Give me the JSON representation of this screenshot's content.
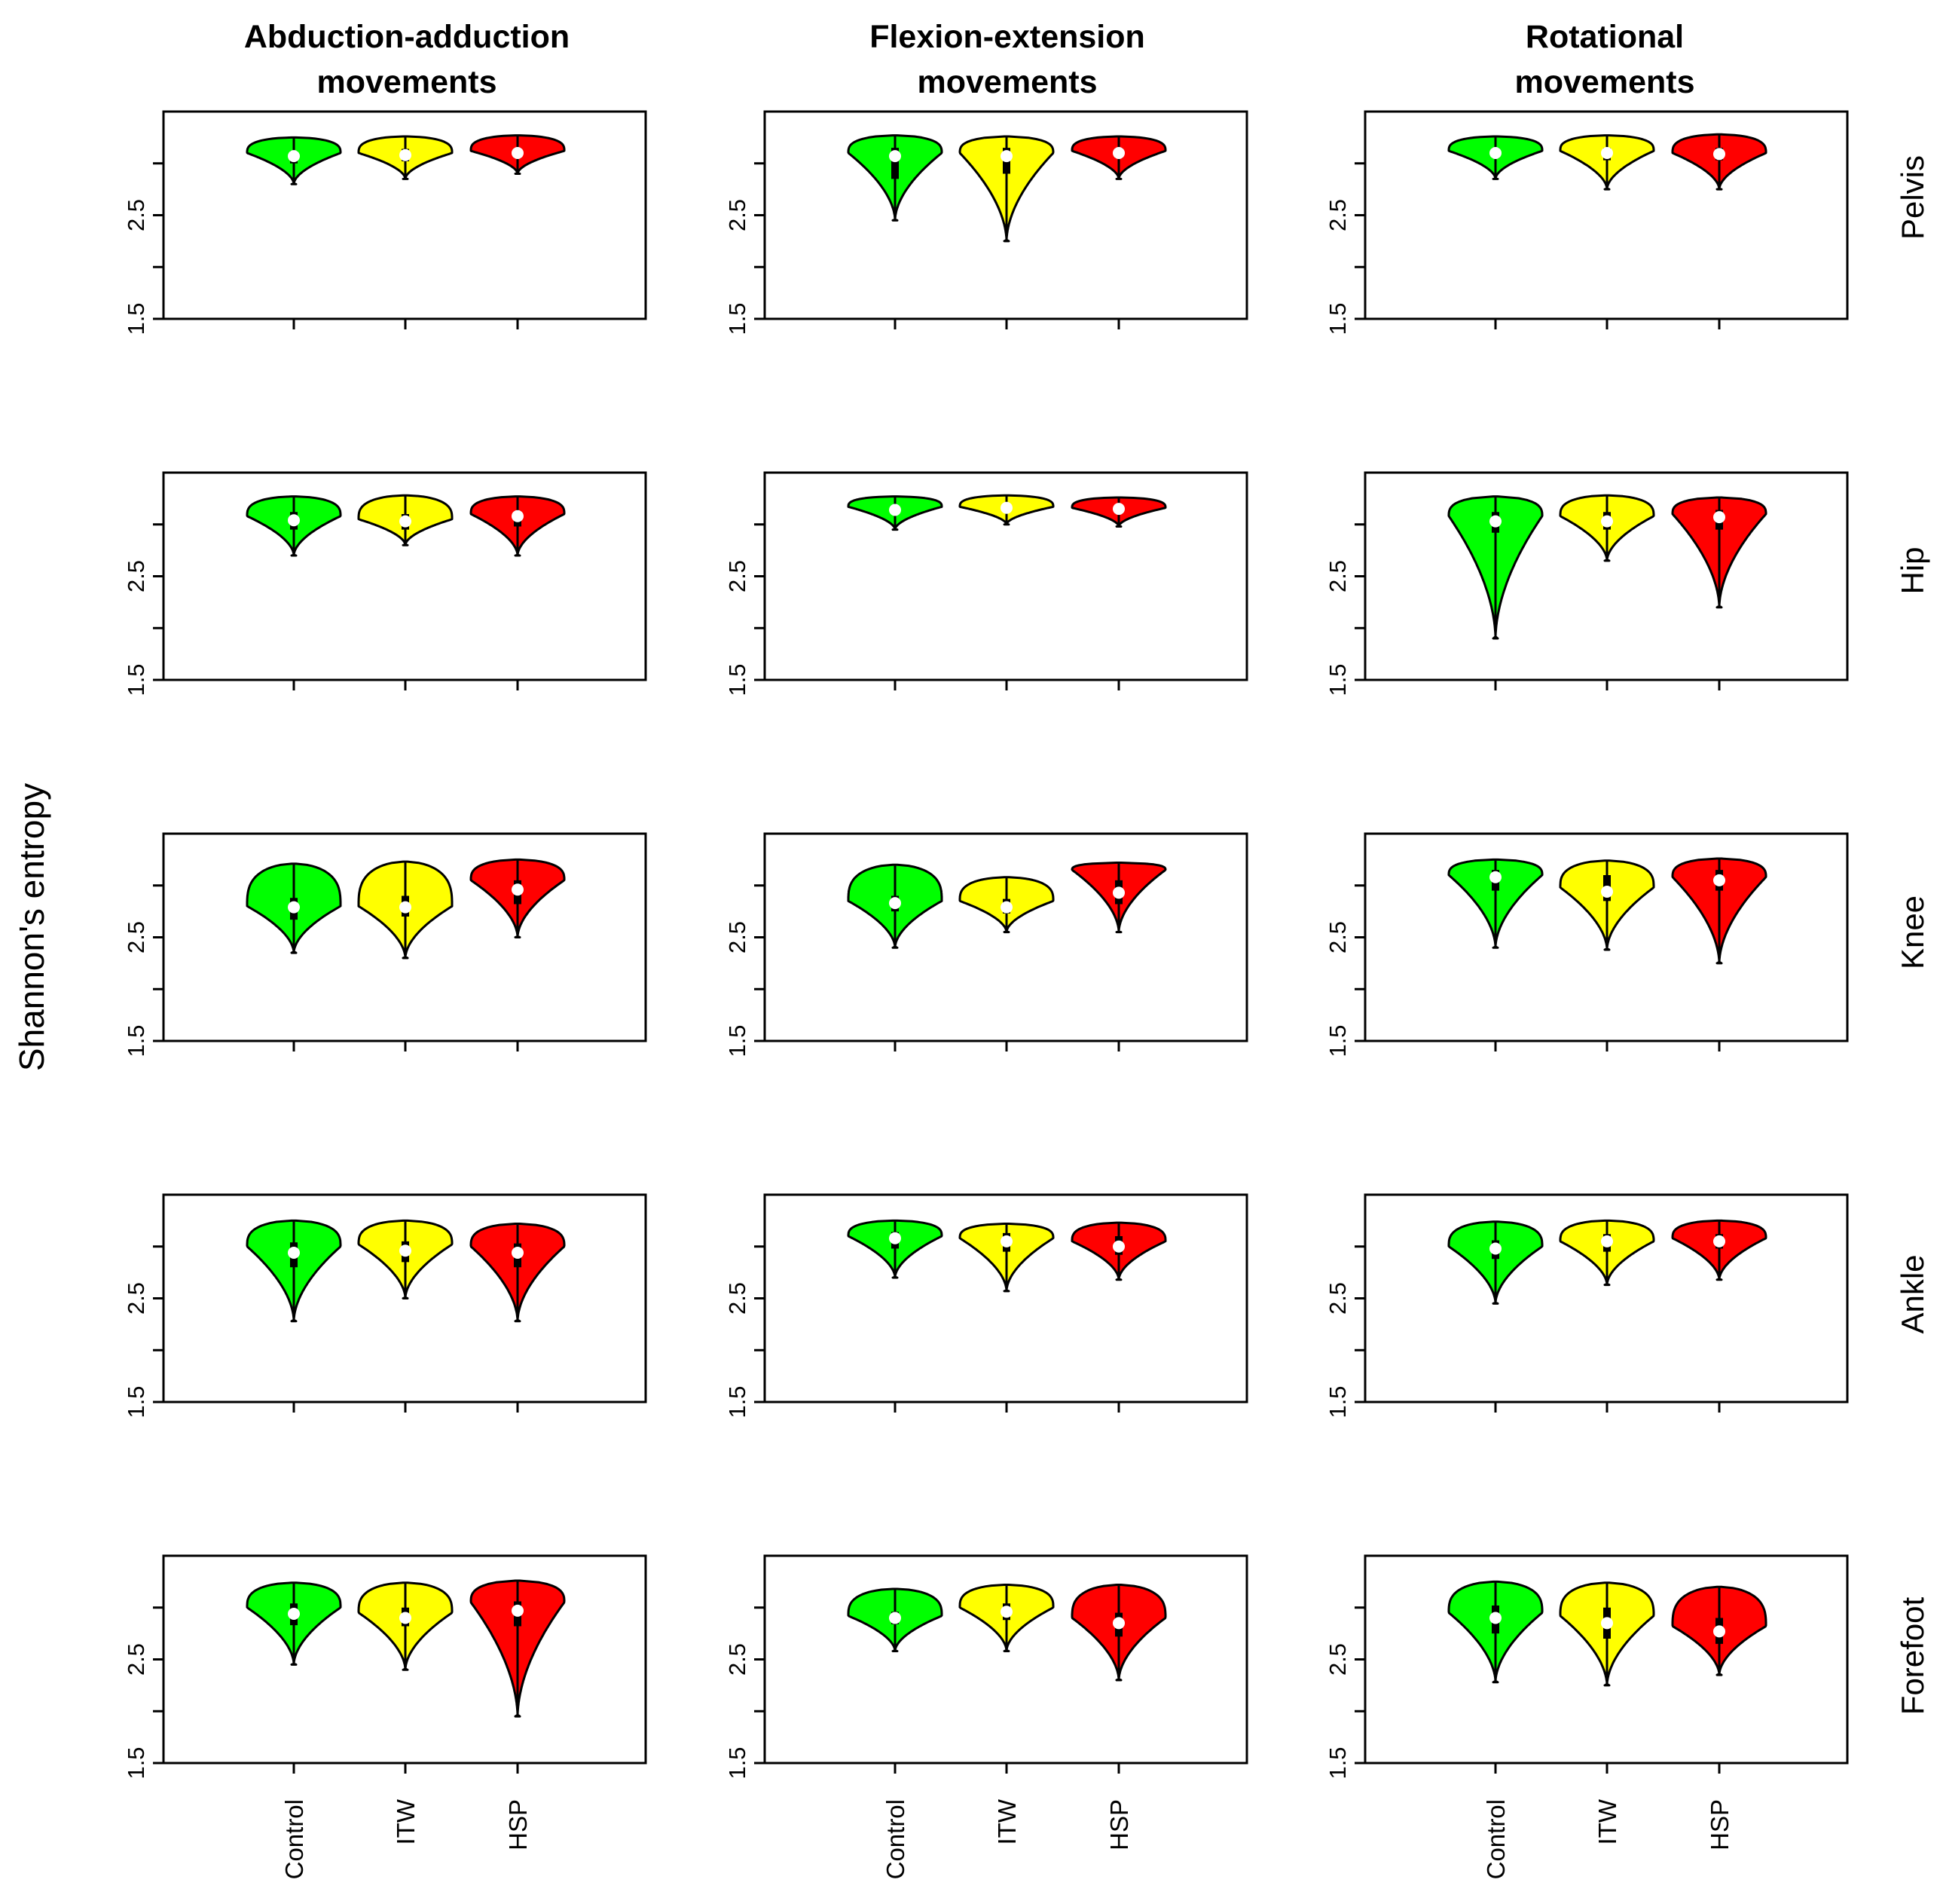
{
  "chart_data": {
    "type": "violin",
    "ylabel": "Shannon's entropy",
    "ylim": [
      1.5,
      3.5
    ],
    "y_tick_labels": [
      "1.5",
      "2.5"
    ],
    "y_ticks": [
      1.5,
      2.0,
      2.5,
      3.0
    ],
    "categories": [
      "Control",
      "ITW",
      "HSP"
    ],
    "colors": {
      "Control": "#00ff00",
      "ITW": "#ffff00",
      "HSP": "#ff0000"
    },
    "columns": [
      {
        "title_line1": "Abduction-adduction",
        "title_line2": "movements"
      },
      {
        "title_line1": "Flexion-extension",
        "title_line2": "movements"
      },
      {
        "title_line1": "Rotational",
        "title_line2": "movements"
      }
    ],
    "rows": [
      "Pelvis",
      "Hip",
      "Knee",
      "Ankle",
      "Forefoot"
    ],
    "panels": [
      [
        [
          {
            "min": 2.8,
            "q1": 3.0,
            "median": 3.07,
            "q3": 3.12,
            "max": 3.25,
            "peak": 3.1
          },
          {
            "min": 2.85,
            "q1": 3.02,
            "median": 3.08,
            "q3": 3.14,
            "max": 3.26,
            "peak": 3.1
          },
          {
            "min": 2.9,
            "q1": 3.05,
            "median": 3.1,
            "q3": 3.15,
            "max": 3.27,
            "peak": 3.12
          }
        ],
        [
          {
            "min": 2.45,
            "q1": 2.85,
            "median": 3.07,
            "q3": 3.15,
            "max": 3.27,
            "peak": 3.1
          },
          {
            "min": 2.25,
            "q1": 2.9,
            "median": 3.07,
            "q3": 3.15,
            "max": 3.26,
            "peak": 3.1
          },
          {
            "min": 2.85,
            "q1": 3.05,
            "median": 3.1,
            "q3": 3.15,
            "max": 3.26,
            "peak": 3.12
          }
        ],
        [
          {
            "min": 2.85,
            "q1": 3.05,
            "median": 3.1,
            "q3": 3.15,
            "max": 3.26,
            "peak": 3.12
          },
          {
            "min": 2.75,
            "q1": 3.03,
            "median": 3.1,
            "q3": 3.15,
            "max": 3.27,
            "peak": 3.12
          },
          {
            "min": 2.75,
            "q1": 3.03,
            "median": 3.09,
            "q3": 3.15,
            "max": 3.28,
            "peak": 3.1
          }
        ]
      ],
      [
        [
          {
            "min": 2.7,
            "q1": 2.95,
            "median": 3.04,
            "q3": 3.12,
            "max": 3.27,
            "peak": 3.08
          },
          {
            "min": 2.8,
            "q1": 2.95,
            "median": 3.03,
            "q3": 3.1,
            "max": 3.28,
            "peak": 3.05
          },
          {
            "min": 2.7,
            "q1": 2.98,
            "median": 3.08,
            "q3": 3.13,
            "max": 3.27,
            "peak": 3.1
          }
        ],
        [
          {
            "min": 2.95,
            "q1": 3.1,
            "median": 3.14,
            "q3": 3.18,
            "max": 3.27,
            "peak": 3.17
          },
          {
            "min": 3.0,
            "q1": 3.12,
            "median": 3.16,
            "q3": 3.2,
            "max": 3.28,
            "peak": 3.17
          },
          {
            "min": 2.98,
            "q1": 3.1,
            "median": 3.15,
            "q3": 3.18,
            "max": 3.26,
            "peak": 3.16
          }
        ],
        [
          {
            "min": 1.9,
            "q1": 2.92,
            "median": 3.03,
            "q3": 3.12,
            "max": 3.27,
            "peak": 3.08
          },
          {
            "min": 2.65,
            "q1": 2.95,
            "median": 3.03,
            "q3": 3.12,
            "max": 3.28,
            "peak": 3.08
          },
          {
            "min": 2.2,
            "q1": 2.95,
            "median": 3.07,
            "q3": 3.14,
            "max": 3.26,
            "peak": 3.1
          }
        ]
      ],
      [
        [
          {
            "min": 2.35,
            "q1": 2.67,
            "median": 2.79,
            "q3": 2.88,
            "max": 3.21,
            "peak": 2.8
          },
          {
            "min": 2.3,
            "q1": 2.7,
            "median": 2.79,
            "q3": 2.9,
            "max": 3.23,
            "peak": 2.8
          },
          {
            "min": 2.5,
            "q1": 2.82,
            "median": 2.96,
            "q3": 3.05,
            "max": 3.25,
            "peak": 3.05
          }
        ],
        [
          {
            "min": 2.4,
            "q1": 2.75,
            "median": 2.83,
            "q3": 2.9,
            "max": 3.2,
            "peak": 2.85
          },
          {
            "min": 2.55,
            "q1": 2.73,
            "median": 2.79,
            "q3": 2.87,
            "max": 3.08,
            "peak": 2.85
          },
          {
            "min": 2.55,
            "q1": 2.82,
            "median": 2.93,
            "q3": 3.05,
            "max": 3.22,
            "peak": 3.15
          }
        ],
        [
          {
            "min": 2.4,
            "q1": 2.95,
            "median": 3.08,
            "q3": 3.15,
            "max": 3.25,
            "peak": 3.1
          },
          {
            "min": 2.38,
            "q1": 2.85,
            "median": 2.94,
            "q3": 3.1,
            "max": 3.24,
            "peak": 2.98
          },
          {
            "min": 2.25,
            "q1": 2.95,
            "median": 3.05,
            "q3": 3.15,
            "max": 3.26,
            "peak": 3.08
          }
        ]
      ],
      [
        [
          {
            "min": 2.28,
            "q1": 2.8,
            "median": 2.94,
            "q3": 3.04,
            "max": 3.25,
            "peak": 3.0
          },
          {
            "min": 2.5,
            "q1": 2.85,
            "median": 2.96,
            "q3": 3.05,
            "max": 3.25,
            "peak": 3.02
          },
          {
            "min": 2.28,
            "q1": 2.8,
            "median": 2.94,
            "q3": 3.03,
            "max": 3.22,
            "peak": 3.0
          }
        ],
        [
          {
            "min": 2.7,
            "q1": 2.98,
            "median": 3.08,
            "q3": 3.14,
            "max": 3.25,
            "peak": 3.1
          },
          {
            "min": 2.57,
            "q1": 2.95,
            "median": 3.05,
            "q3": 3.13,
            "max": 3.22,
            "peak": 3.08
          },
          {
            "min": 2.68,
            "q1": 2.92,
            "median": 3.0,
            "q3": 3.1,
            "max": 3.23,
            "peak": 3.05
          }
        ],
        [
          {
            "min": 2.45,
            "q1": 2.88,
            "median": 2.98,
            "q3": 3.06,
            "max": 3.24,
            "peak": 3.0
          },
          {
            "min": 2.63,
            "q1": 2.95,
            "median": 3.05,
            "q3": 3.12,
            "max": 3.25,
            "peak": 3.05
          },
          {
            "min": 2.68,
            "q1": 2.98,
            "median": 3.05,
            "q3": 3.12,
            "max": 3.25,
            "peak": 3.08
          }
        ]
      ],
      [
        [
          {
            "min": 2.45,
            "q1": 2.83,
            "median": 2.94,
            "q3": 3.04,
            "max": 3.24,
            "peak": 3.0
          },
          {
            "min": 2.4,
            "q1": 2.82,
            "median": 2.9,
            "q3": 3.0,
            "max": 3.24,
            "peak": 2.95
          },
          {
            "min": 1.95,
            "q1": 2.82,
            "median": 2.97,
            "q3": 3.06,
            "max": 3.26,
            "peak": 3.05
          }
        ],
        [
          {
            "min": 2.58,
            "q1": 2.84,
            "median": 2.9,
            "q3": 2.96,
            "max": 3.18,
            "peak": 2.92
          },
          {
            "min": 2.58,
            "q1": 2.88,
            "median": 2.96,
            "q3": 3.04,
            "max": 3.22,
            "peak": 3.0
          },
          {
            "min": 2.3,
            "q1": 2.72,
            "median": 2.85,
            "q3": 2.95,
            "max": 3.22,
            "peak": 2.9
          }
        ],
        [
          {
            "min": 2.28,
            "q1": 2.75,
            "median": 2.9,
            "q3": 3.02,
            "max": 3.25,
            "peak": 2.95
          },
          {
            "min": 2.25,
            "q1": 2.7,
            "median": 2.85,
            "q3": 3.0,
            "max": 3.24,
            "peak": 2.92
          },
          {
            "min": 2.35,
            "q1": 2.65,
            "median": 2.77,
            "q3": 2.9,
            "max": 3.2,
            "peak": 2.82
          }
        ]
      ]
    ]
  }
}
